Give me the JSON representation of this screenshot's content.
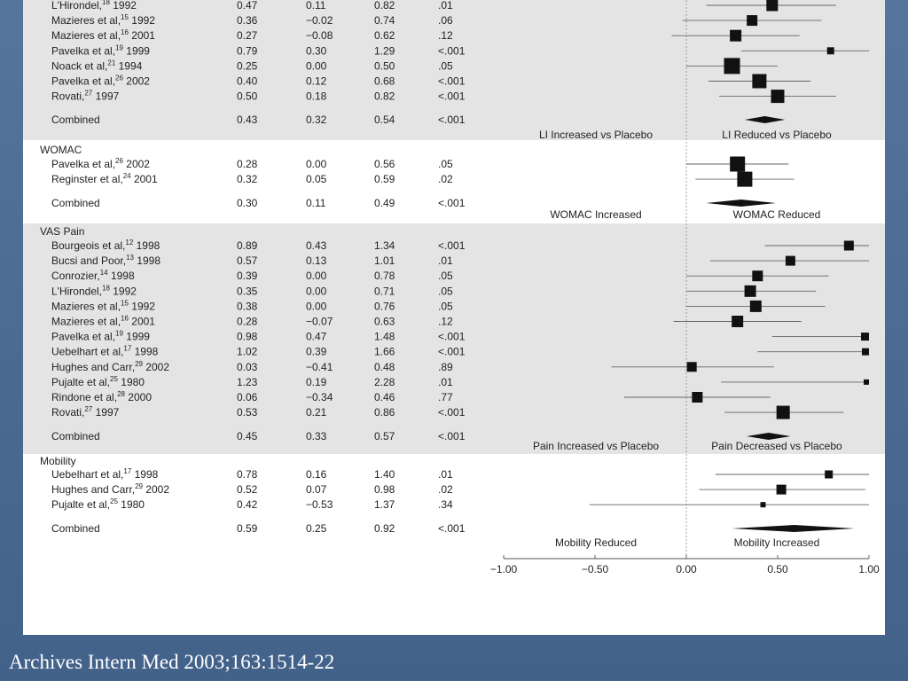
{
  "footer_citation": "Archives Intern Med 2003;163:1514-22",
  "chart_data": {
    "type": "forest",
    "x_axis": {
      "ticks": [
        "−1.00",
        "−0.50",
        "0.00",
        "0.50",
        "1.00"
      ],
      "values": [
        -1,
        -0.5,
        0,
        0.5,
        1
      ],
      "range": [
        -1,
        1
      ]
    },
    "groups": [
      {
        "name": "",
        "shaded": true,
        "rows": [
          {
            "study": "L'Hirondel,",
            "ref": "18",
            "year": " 1992",
            "es": "0.47",
            "lo": "0.11",
            "hi": "0.82",
            "p": ".01",
            "v": [
              0.47,
              0.11,
              0.82
            ],
            "w": 13
          },
          {
            "study": "Mazieres et al,",
            "ref": "15",
            "year": " 1992",
            "es": "0.36",
            "lo": "−0.02",
            "hi": "0.74",
            "p": ".06",
            "v": [
              0.36,
              -0.02,
              0.74
            ],
            "w": 12
          },
          {
            "study": "Mazieres et al,",
            "ref": "16",
            "year": " 2001",
            "es": "0.27",
            "lo": "−0.08",
            "hi": "0.62",
            "p": ".12",
            "v": [
              0.27,
              -0.08,
              0.62
            ],
            "w": 13
          },
          {
            "study": "Pavelka et al,",
            "ref": "19",
            "year": " 1999",
            "es": "0.79",
            "lo": "0.30",
            "hi": "1.29",
            "p": "<.001",
            "v": [
              0.79,
              0.3,
              1.29
            ],
            "w": 8
          },
          {
            "study": "Noack et al,",
            "ref": "21",
            "year": " 1994",
            "es": "0.25",
            "lo": "0.00",
            "hi": "0.50",
            "p": ".05",
            "v": [
              0.25,
              0.0,
              0.5
            ],
            "w": 18
          },
          {
            "study": "Pavelka et al,",
            "ref": "26",
            "year": " 2002",
            "es": "0.40",
            "lo": "0.12",
            "hi": "0.68",
            "p": "<.001",
            "v": [
              0.4,
              0.12,
              0.68
            ],
            "w": 16
          },
          {
            "study": "Rovati,",
            "ref": "27",
            "year": " 1997",
            "es": "0.50",
            "lo": "0.18",
            "hi": "0.82",
            "p": "<.001",
            "v": [
              0.5,
              0.18,
              0.82
            ],
            "w": 15
          }
        ],
        "combined": {
          "label": "Combined",
          "es": "0.43",
          "lo": "0.32",
          "hi": "0.54",
          "p": "<.001",
          "v": [
            0.43,
            0.32,
            0.54
          ]
        },
        "left_label": "LI Increased vs Placebo",
        "right_label": "LI Reduced vs Placebo"
      },
      {
        "name": "WOMAC",
        "shaded": false,
        "rows": [
          {
            "study": "Pavelka et al,",
            "ref": "26",
            "year": " 2002",
            "es": "0.28",
            "lo": "0.00",
            "hi": "0.56",
            "p": ".05",
            "v": [
              0.28,
              0.0,
              0.56
            ],
            "w": 17
          },
          {
            "study": "Reginster et al,",
            "ref": "24",
            "year": " 2001",
            "es": "0.32",
            "lo": "0.05",
            "hi": "0.59",
            "p": ".02",
            "v": [
              0.32,
              0.05,
              0.59
            ],
            "w": 17
          }
        ],
        "combined": {
          "label": "Combined",
          "es": "0.30",
          "lo": "0.11",
          "hi": "0.49",
          "p": "<.001",
          "v": [
            0.3,
            0.11,
            0.49
          ]
        },
        "left_label": "WOMAC Increased",
        "right_label": "WOMAC Reduced"
      },
      {
        "name": "VAS Pain",
        "shaded": true,
        "rows": [
          {
            "study": "Bourgeois et al,",
            "ref": "12",
            "year": " 1998",
            "es": "0.89",
            "lo": "0.43",
            "hi": "1.34",
            "p": "<.001",
            "v": [
              0.89,
              0.43,
              1.34
            ],
            "w": 11
          },
          {
            "study": "Bucsi and Poor,",
            "ref": "13",
            "year": " 1998",
            "es": "0.57",
            "lo": "0.13",
            "hi": "1.01",
            "p": ".01",
            "v": [
              0.57,
              0.13,
              1.01
            ],
            "w": 11
          },
          {
            "study": "Conrozier,",
            "ref": "14",
            "year": " 1998",
            "es": "0.39",
            "lo": "0.00",
            "hi": "0.78",
            "p": ".05",
            "v": [
              0.39,
              0.0,
              0.78
            ],
            "w": 12
          },
          {
            "study": "L'Hirondel,",
            "ref": "18",
            "year": " 1992",
            "es": "0.35",
            "lo": "0.00",
            "hi": "0.71",
            "p": ".05",
            "v": [
              0.35,
              0.0,
              0.71
            ],
            "w": 13
          },
          {
            "study": "Mazieres et al,",
            "ref": "15",
            "year": " 1992",
            "es": "0.38",
            "lo": "0.00",
            "hi": "0.76",
            "p": ".05",
            "v": [
              0.38,
              0.0,
              0.76
            ],
            "w": 13
          },
          {
            "study": "Mazieres et al,",
            "ref": "16",
            "year": " 2001",
            "es": "0.28",
            "lo": "−0.07",
            "hi": "0.63",
            "p": ".12",
            "v": [
              0.28,
              -0.07,
              0.63
            ],
            "w": 13
          },
          {
            "study": "Pavelka et al,",
            "ref": "19",
            "year": " 1999",
            "es": "0.98",
            "lo": "0.47",
            "hi": "1.48",
            "p": "<.001",
            "v": [
              0.98,
              0.47,
              1.48
            ],
            "w": 9
          },
          {
            "study": "Uebelhart et al,",
            "ref": "17",
            "year": " 1998",
            "es": "1.02",
            "lo": "0.39",
            "hi": "1.66",
            "p": "<.001",
            "v": [
              1.02,
              0.39,
              1.66
            ],
            "w": 8
          },
          {
            "study": "Hughes and Carr,",
            "ref": "29",
            "year": " 2002",
            "es": "0.03",
            "lo": "−0.41",
            "hi": "0.48",
            "p": ".89",
            "v": [
              0.03,
              -0.41,
              0.48
            ],
            "w": 11
          },
          {
            "study": "Pujalte et al,",
            "ref": "25",
            "year": " 1980",
            "es": "1.23",
            "lo": "0.19",
            "hi": "2.28",
            "p": ".01",
            "v": [
              1.23,
              0.19,
              2.28
            ],
            "w": 6
          },
          {
            "study": "Rindone et al,",
            "ref": "28",
            "year": " 2000",
            "es": "0.06",
            "lo": "−0.34",
            "hi": "0.46",
            "p": ".77",
            "v": [
              0.06,
              -0.34,
              0.46
            ],
            "w": 12
          },
          {
            "study": "Rovati,",
            "ref": "27",
            "year": " 1997",
            "es": "0.53",
            "lo": "0.21",
            "hi": "0.86",
            "p": "<.001",
            "v": [
              0.53,
              0.21,
              0.86
            ],
            "w": 15
          }
        ],
        "combined": {
          "label": "Combined",
          "es": "0.45",
          "lo": "0.33",
          "hi": "0.57",
          "p": "<.001",
          "v": [
            0.45,
            0.33,
            0.57
          ]
        },
        "left_label": "Pain Increased vs Placebo",
        "right_label": "Pain Decreased vs Placebo"
      },
      {
        "name": "Mobility",
        "shaded": false,
        "rows": [
          {
            "study": "Uebelhart et al,",
            "ref": "17",
            "year": " 1998",
            "es": "0.78",
            "lo": "0.16",
            "hi": "1.40",
            "p": ".01",
            "v": [
              0.78,
              0.16,
              1.4
            ],
            "w": 9
          },
          {
            "study": "Hughes and Carr,",
            "ref": "29",
            "year": " 2002",
            "es": "0.52",
            "lo": "0.07",
            "hi": "0.98",
            "p": ".02",
            "v": [
              0.52,
              0.07,
              0.98
            ],
            "w": 11
          },
          {
            "study": "Pujalte et al,",
            "ref": "25",
            "year": " 1980",
            "es": "0.42",
            "lo": "−0.53",
            "hi": "1.37",
            "p": ".34",
            "v": [
              0.42,
              -0.53,
              1.37
            ],
            "w": 6
          }
        ],
        "combined": {
          "label": "Combined",
          "es": "0.59",
          "lo": "0.25",
          "hi": "0.92",
          "p": "<.001",
          "v": [
            0.59,
            0.25,
            0.92
          ]
        },
        "left_label": "Mobility Reduced",
        "right_label": "Mobility Increased"
      }
    ]
  }
}
